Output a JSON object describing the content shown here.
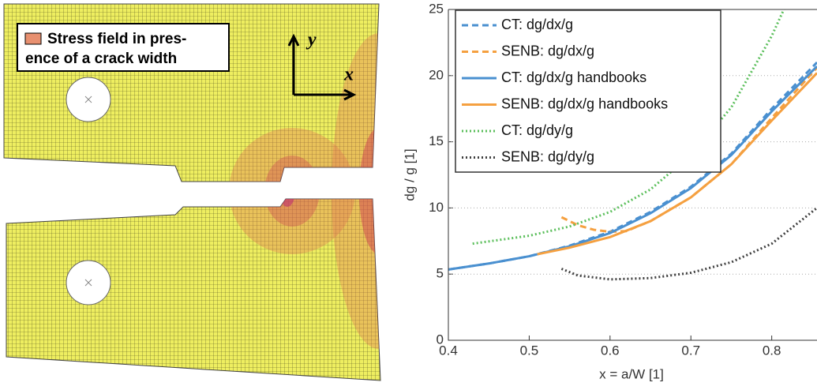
{
  "figure": {
    "legend_lines": [
      "Stress field in pres-",
      "ence of a crack width"
    ],
    "axis_x": "x",
    "axis_y": "y"
  },
  "chart_data": {
    "type": "line",
    "xlabel": "x = a/W [1]",
    "ylabel": "dg / g [1]",
    "xlim": [
      0.4,
      0.856
    ],
    "ylim": [
      0,
      25
    ],
    "xticks": [
      0.4,
      0.5,
      0.6,
      0.7,
      0.8
    ],
    "yticks": [
      0,
      5,
      10,
      15,
      20,
      25
    ],
    "grid": true,
    "legend": "top-left",
    "series": [
      {
        "name": "CT: dg/dx/g",
        "color": "#4a90d0",
        "style": "dashed",
        "x": [
          0.4,
          0.45,
          0.5,
          0.55,
          0.6,
          0.65,
          0.7,
          0.75,
          0.8,
          0.856
        ],
        "values": [
          5.35,
          5.8,
          6.35,
          7.15,
          8.2,
          9.7,
          11.6,
          14.1,
          17.5,
          21.0
        ]
      },
      {
        "name": "SENB: dg/dx/g",
        "color": "#f5a040",
        "style": "dashed",
        "x": [
          0.54,
          0.56,
          0.58,
          0.6,
          0.62,
          0.65,
          0.7,
          0.75,
          0.8,
          0.856
        ],
        "values": [
          9.3,
          8.7,
          8.35,
          8.2,
          8.25,
          9.0,
          10.8,
          13.3,
          16.8,
          20.6
        ]
      },
      {
        "name": "CT: dg/dx/g handbooks",
        "color": "#4a90d0",
        "style": "solid",
        "x": [
          0.4,
          0.45,
          0.5,
          0.55,
          0.6,
          0.65,
          0.7,
          0.75,
          0.8,
          0.856
        ],
        "values": [
          5.35,
          5.8,
          6.35,
          7.1,
          8.1,
          9.6,
          11.5,
          14.0,
          17.3,
          20.7
        ]
      },
      {
        "name": "SENB: dg/dx/g handbooks",
        "color": "#f5a040",
        "style": "solid",
        "x": [
          0.51,
          0.55,
          0.6,
          0.65,
          0.7,
          0.75,
          0.8,
          0.856
        ],
        "values": [
          6.5,
          7.0,
          7.8,
          9.0,
          10.8,
          13.3,
          16.6,
          20.2
        ]
      },
      {
        "name": "CT: dg/dy/g",
        "color": "#5cbf5c",
        "style": "dotted",
        "x": [
          0.43,
          0.5,
          0.55,
          0.6,
          0.65,
          0.7,
          0.75,
          0.8,
          0.815
        ],
        "values": [
          7.3,
          7.9,
          8.6,
          9.7,
          11.4,
          14.0,
          17.6,
          23.0,
          25
        ]
      },
      {
        "name": "SENB: dg/dy/g",
        "color": "#404040",
        "style": "dotted",
        "x": [
          0.54,
          0.56,
          0.6,
          0.65,
          0.7,
          0.75,
          0.8,
          0.856
        ],
        "values": [
          5.4,
          4.9,
          4.6,
          4.7,
          5.1,
          5.9,
          7.3,
          10.0
        ]
      }
    ]
  }
}
